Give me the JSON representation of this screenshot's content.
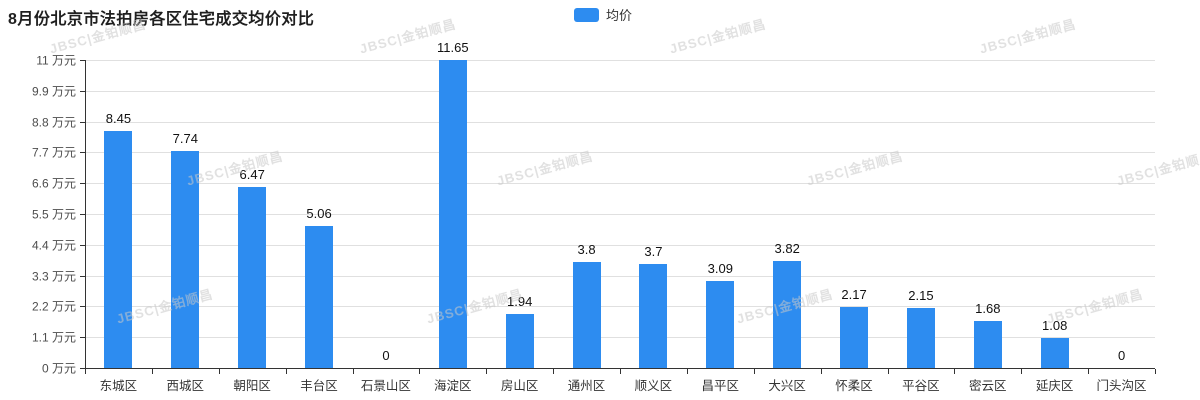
{
  "title": "8月份北京市法拍房各区住宅成交均价对比",
  "legend": {
    "label": "均价",
    "color": "#2d8cf0"
  },
  "watermark": {
    "text": "JBSC|金铂顺昌"
  },
  "chart_data": {
    "type": "bar",
    "title": "8月份北京市法拍房各区住宅成交均价对比",
    "series_name": "均价",
    "categories": [
      "东城区",
      "西城区",
      "朝阳区",
      "丰台区",
      "石景山区",
      "海淀区",
      "房山区",
      "通州区",
      "顺义区",
      "昌平区",
      "大兴区",
      "怀柔区",
      "平谷区",
      "密云区",
      "延庆区",
      "门头沟区"
    ],
    "values": [
      8.45,
      7.74,
      6.47,
      5.06,
      0,
      11.65,
      1.94,
      3.8,
      3.7,
      3.09,
      3.82,
      2.17,
      2.15,
      1.68,
      1.08,
      0
    ],
    "value_labels": [
      "8.45",
      "7.74",
      "6.47",
      "5.06",
      "0",
      "11.65",
      "1.94",
      "3.8",
      "3.7",
      "3.09",
      "3.82",
      "2.17",
      "2.15",
      "1.68",
      "1.08",
      "0"
    ],
    "xlabel": "",
    "ylabel": "万元",
    "ylim": [
      0,
      11
    ],
    "y_ticks": [
      0,
      1.1,
      2.2,
      3.3,
      4.4,
      5.5,
      6.6,
      7.7,
      8.8,
      9.9,
      11
    ],
    "y_tick_labels": [
      "0 万元",
      "1.1 万元",
      "2.2 万元",
      "3.3 万元",
      "4.4 万元",
      "5.5 万元",
      "6.6 万元",
      "7.7 万元",
      "8.8 万元",
      "9.9 万元",
      "11 万元"
    ],
    "grid": true,
    "legend_position": "top-center",
    "bar_color": "#2d8cf0"
  }
}
